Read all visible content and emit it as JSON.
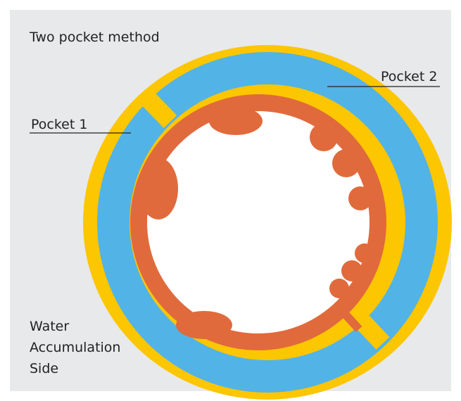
{
  "title": "Two pocket method",
  "labels": {
    "pocket_1": "Pocket 1",
    "pocket_2": "Pocket 2",
    "water_side": [
      "Water",
      "Accumulation",
      "Side"
    ]
  }
}
